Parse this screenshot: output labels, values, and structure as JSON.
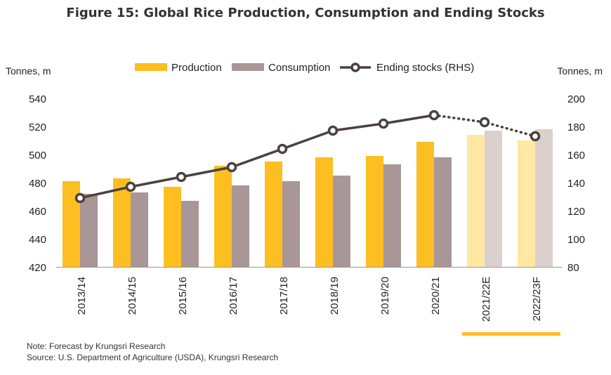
{
  "title": "Figure 15: Global Rice Production, Consumption and Ending Stocks",
  "notes": {
    "note": "Note: Forecast by Krungsri Research",
    "source": "Source: U.S. Department of Agriculture (USDA), Krungsri Research"
  },
  "chart_data": {
    "type": "bar",
    "categories": [
      "2013/14",
      "2014/15",
      "2015/16",
      "2016/17",
      "2017/18",
      "2018/19",
      "2019/20",
      "2020/21",
      "2021/22E",
      "2022/23F"
    ],
    "forecast_categories": [
      "2021/22E",
      "2022/23F"
    ],
    "series": [
      {
        "name": "Production",
        "type": "bar",
        "axis": "left",
        "values": [
          481,
          483,
          477,
          492,
          495,
          498,
          499,
          509,
          514,
          510
        ]
      },
      {
        "name": "Consumption",
        "type": "bar",
        "axis": "left",
        "values": [
          472,
          473,
          467,
          478,
          481,
          485,
          493,
          498,
          517,
          518
        ]
      },
      {
        "name": "Ending stocks (RHS)",
        "type": "line",
        "axis": "right",
        "values": [
          129,
          137,
          144,
          151,
          164,
          177,
          182,
          188,
          183,
          173
        ]
      }
    ],
    "left_axis": {
      "label": "Tonnes, m",
      "range": [
        420,
        540
      ],
      "ticks": [
        420,
        440,
        460,
        480,
        500,
        520,
        540
      ]
    },
    "right_axis": {
      "label": "Tonnes, m",
      "range": [
        80,
        200
      ],
      "ticks": [
        80,
        100,
        120,
        140,
        160,
        180,
        200
      ]
    },
    "legend_position": "top",
    "grid": false,
    "colors": {
      "production": "#FDBE22",
      "production_forecast": "#FFE8A3",
      "consumption": "#A89796",
      "consumption_forecast": "#DCD0CE",
      "line": "#4B413F",
      "forecast_marker": "#FDBE22"
    }
  }
}
